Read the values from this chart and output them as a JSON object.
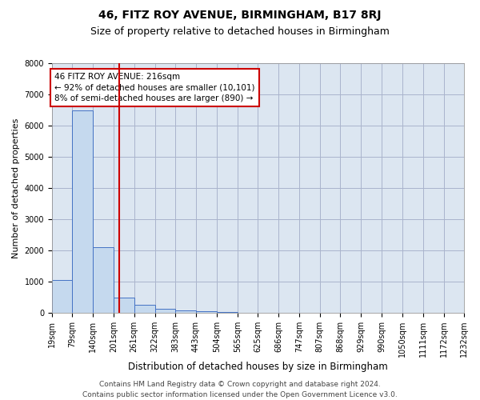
{
  "title": "46, FITZ ROY AVENUE, BIRMINGHAM, B17 8RJ",
  "subtitle": "Size of property relative to detached houses in Birmingham",
  "xlabel": "Distribution of detached houses by size in Birmingham",
  "ylabel": "Number of detached properties",
  "footer_line1": "Contains HM Land Registry data © Crown copyright and database right 2024.",
  "footer_line2": "Contains public sector information licensed under the Open Government Licence v3.0.",
  "annotation_line1": "46 FITZ ROY AVENUE: 216sqm",
  "annotation_line2": "← 92% of detached houses are smaller (10,101)",
  "annotation_line3": "8% of semi-detached houses are larger (890) →",
  "bar_edges": [
    19,
    79,
    140,
    201,
    261,
    322,
    383,
    443,
    504,
    565,
    625,
    686,
    747,
    807,
    868,
    929,
    990,
    1050,
    1111,
    1172,
    1232
  ],
  "bar_heights": [
    1050,
    6500,
    2100,
    500,
    270,
    130,
    90,
    50,
    30,
    5,
    5,
    0,
    0,
    0,
    0,
    0,
    0,
    0,
    0,
    0
  ],
  "bar_color": "#c5d9ee",
  "bar_edgecolor": "#4472c4",
  "vline_color": "#cc0000",
  "vline_x": 216,
  "ylim": [
    0,
    8000
  ],
  "yticks": [
    0,
    1000,
    2000,
    3000,
    4000,
    5000,
    6000,
    7000,
    8000
  ],
  "grid_color": "#aab4cc",
  "bg_color": "#dce6f1",
  "annotation_box_edgecolor": "#cc0000",
  "annotation_box_facecolor": "#ffffff",
  "title_fontsize": 10,
  "subtitle_fontsize": 9,
  "xlabel_fontsize": 8.5,
  "ylabel_fontsize": 8,
  "tick_fontsize": 7,
  "annotation_fontsize": 7.5,
  "footer_fontsize": 6.5
}
